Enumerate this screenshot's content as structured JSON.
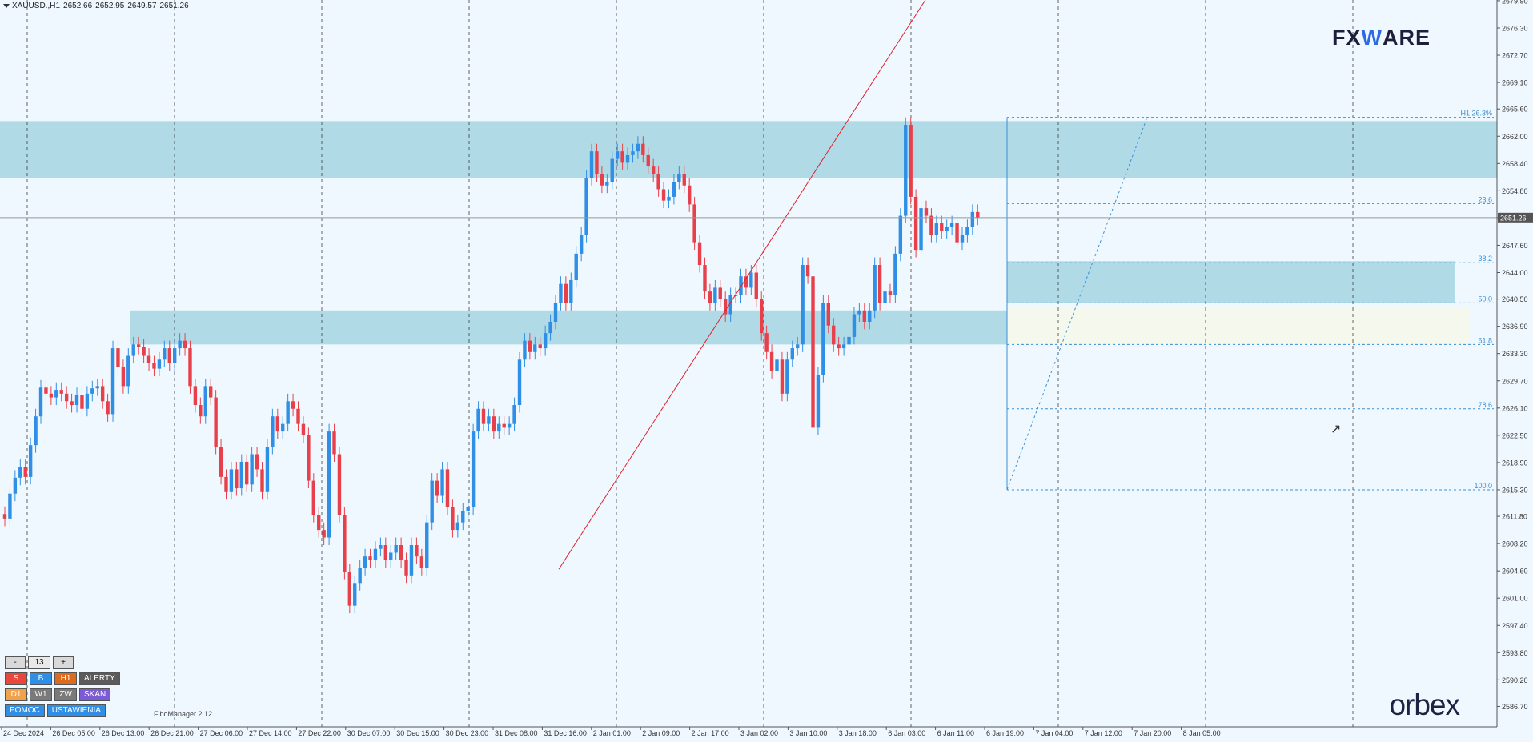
{
  "header": {
    "symbol": "XAUUSD.,H1",
    "open": "2652.66",
    "high": "2652.95",
    "low": "2649.57",
    "close": "2651.26"
  },
  "logos": {
    "fxware_left": "FX",
    "fxware_mid": "W",
    "fxware_right": "ARE",
    "orbex": "orbex"
  },
  "panel": {
    "minus": "-",
    "count": "13",
    "plus": "+",
    "s": "S",
    "b": "B",
    "h1": "H1",
    "alerty": "ALERTY",
    "d1": "D1",
    "w1": "W1",
    "zw": "ZW",
    "skan": "SKAN",
    "pomoc": "POMOC",
    "ustawienia": "USTAWIENIA"
  },
  "fibo_manager_label": "FiboManager 2.12",
  "colors": {
    "bull": "#2f8ee5",
    "bear": "#e8404a",
    "zone": "#add8e6",
    "background": "#f0f8ff",
    "trendline": "#e0202a",
    "fib": "#3a8fd6"
  },
  "chart_data": {
    "type": "candlestick",
    "symbol": "XAUUSD",
    "timeframe": "H1",
    "ylim": [
      2584.0,
      2680.0
    ],
    "y_ticks": [
      "2679.90",
      "2676.30",
      "2672.70",
      "2669.10",
      "2665.60",
      "2662.00",
      "2658.40",
      "2654.80",
      "2651.26",
      "2647.60",
      "2644.00",
      "2640.50",
      "2636.90",
      "2633.30",
      "2629.70",
      "2626.10",
      "2622.50",
      "2618.90",
      "2615.30",
      "2611.80",
      "2608.20",
      "2604.60",
      "2601.00",
      "2597.40",
      "2593.80",
      "2590.20",
      "2586.70"
    ],
    "current_price": 2651.26,
    "x_ticks": [
      "24 Dec 2024",
      "26 Dec 05:00",
      "26 Dec 13:00",
      "26 Dec 21:00",
      "27 Dec 06:00",
      "27 Dec 14:00",
      "27 Dec 22:00",
      "30 Dec 07:00",
      "30 Dec 15:00",
      "30 Dec 23:00",
      "31 Dec 08:00",
      "31 Dec 16:00",
      "2 Jan 01:00",
      "2 Jan 09:00",
      "2 Jan 17:00",
      "3 Jan 02:00",
      "3 Jan 10:00",
      "3 Jan 18:00",
      "6 Jan 03:00",
      "6 Jan 11:00",
      "6 Jan 19:00",
      "7 Jan 04:00",
      "7 Jan 12:00",
      "7 Jan 20:00",
      "8 Jan 05:00"
    ],
    "candles_close": [
      2611.5,
      2614.8,
      2616.9,
      2618.3,
      2617.0,
      2621.2,
      2625.0,
      2628.8,
      2628.0,
      2627.5,
      2628.5,
      2628.0,
      2627.0,
      2626.5,
      2627.8,
      2626.0,
      2628.0,
      2628.7,
      2629.0,
      2627.0,
      2625.3,
      2634.0,
      2631.5,
      2629.0,
      2633.0,
      2634.5,
      2634.2,
      2633.0,
      2632.0,
      2631.3,
      2632.5,
      2634.0,
      2632.0,
      2634.0,
      2635.0,
      2634.0,
      2629.0,
      2626.5,
      2625.0,
      2629.0,
      2627.5,
      2621.0,
      2617.0,
      2615.0,
      2618.0,
      2615.5,
      2619.0,
      2616.0,
      2620.0,
      2618.0,
      2615.0,
      2621.0,
      2625.0,
      2623.0,
      2624.0,
      2627.0,
      2626.0,
      2624.0,
      2622.5,
      2616.5,
      2612.0,
      2610.0,
      2609.0,
      2623.0,
      2620.0,
      2612.0,
      2604.5,
      2600.0,
      2603.0,
      2605.0,
      2606.5,
      2606.0,
      2607.5,
      2608.0,
      2606.0,
      2607.0,
      2608.0,
      2606.0,
      2604.0,
      2608.0,
      2606.5,
      2605.0,
      2611.0,
      2616.5,
      2614.5,
      2618.0,
      2613.0,
      2610.0,
      2611.0,
      2612.5,
      2613.0,
      2623.0,
      2626.0,
      2624.0,
      2625.0,
      2623.0,
      2624.0,
      2623.5,
      2624.0,
      2626.5,
      2632.5,
      2635.0,
      2633.5,
      2634.5,
      2634.0,
      2636.0,
      2637.5,
      2640.0,
      2642.5,
      2640.0,
      2643.0,
      2646.5,
      2649.0,
      2656.5,
      2660.0,
      2657.0,
      2655.5,
      2656.0,
      2659.0,
      2660.0,
      2658.5,
      2659.5,
      2660.0,
      2661.0,
      2659.5,
      2658.0,
      2657.0,
      2655.0,
      2653.5,
      2654.0,
      2656.0,
      2657.0,
      2655.5,
      2653.0,
      2648.0,
      2645.0,
      2641.5,
      2640.0,
      2642.0,
      2640.5,
      2638.5,
      2641.0,
      2641.0,
      2643.5,
      2642.0,
      2644.0,
      2640.5,
      2636.0,
      2633.5,
      2631.0,
      2632.5,
      2628.0,
      2632.5,
      2634.0,
      2634.5,
      2645.0,
      2643.5,
      2623.5,
      2630.5,
      2640.0,
      2637.0,
      2634.5,
      2634.0,
      2634.5,
      2635.5,
      2638.5,
      2639.0,
      2637.5,
      2639.0,
      2645.0,
      2640.0,
      2641.5,
      2641.0,
      2646.5,
      2651.5,
      2663.5,
      2654.0,
      2647.0,
      2652.5,
      2651.5,
      2649.0,
      2650.5,
      2649.5,
      2650.0,
      2650.5,
      2648.0,
      2649.0,
      2650.0,
      2652.0,
      2651.26
    ],
    "zones": [
      {
        "from": 2656.5,
        "to": 2664.0
      },
      {
        "from": 2634.5,
        "to": 2639.0
      },
      {
        "from": 2640.0,
        "to": 2645.5
      },
      {
        "from": 2634.5,
        "to": 2639.5
      }
    ],
    "fib_levels": [
      {
        "label": "H1 26.3%",
        "price": 2664.5
      },
      {
        "label": "23.6",
        "price": 2653.1
      },
      {
        "label": "38.2",
        "price": 2645.3
      },
      {
        "label": "50.0",
        "price": 2640.0
      },
      {
        "label": "61.8",
        "price": 2634.5
      },
      {
        "label": "78.6",
        "price": 2626.0
      },
      {
        "label": "100.0",
        "price": 2615.3
      }
    ],
    "trendline": {
      "from_price": 2604.8,
      "to_price": 2680.0
    }
  }
}
